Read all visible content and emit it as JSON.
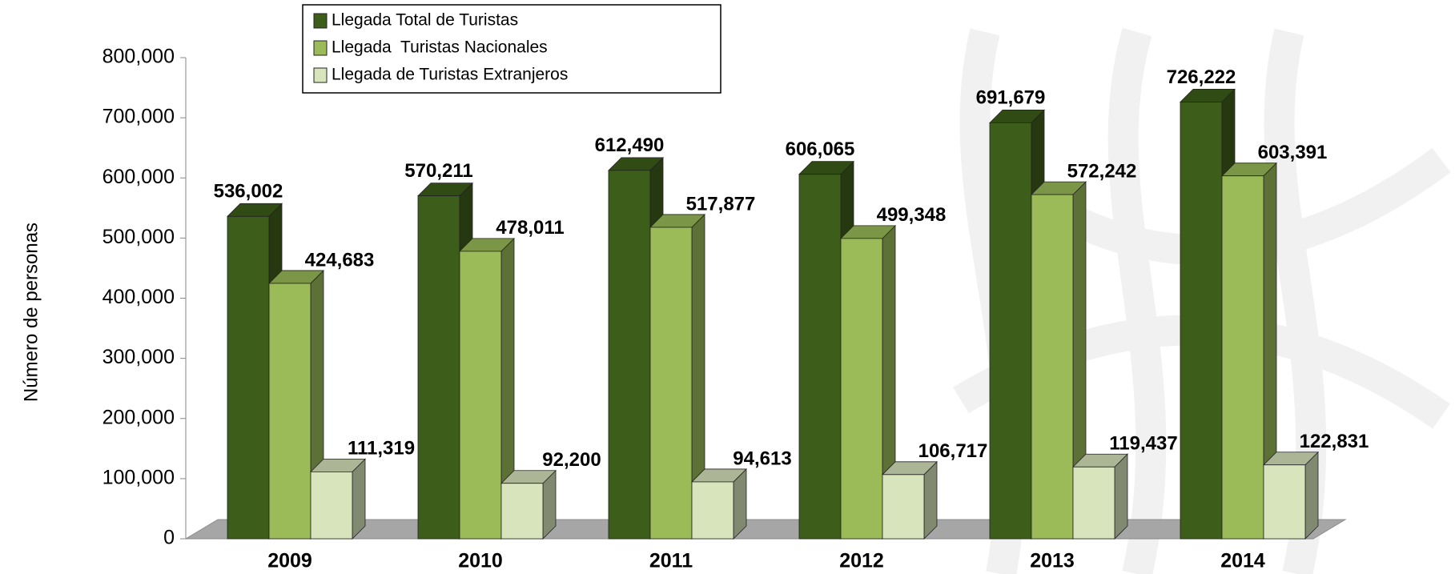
{
  "chart_data": {
    "type": "bar3d",
    "y_label": "Número de personas",
    "categories": [
      "2009",
      "2010",
      "2011",
      "2012",
      "2013",
      "2014"
    ],
    "series": [
      {
        "name": "Llegada Total de Turistas",
        "color": "#3d5e1a",
        "values": [
          536002,
          570211,
          612490,
          606065,
          691679,
          726222
        ],
        "value_labels": [
          "536,002",
          "570,211",
          "612,490",
          "606,065",
          "691,679",
          "726,222"
        ]
      },
      {
        "name": "Llegada  Turistas Nacionales",
        "color": "#9bbb59",
        "values": [
          424683,
          478011,
          517877,
          499348,
          572242,
          603391
        ],
        "value_labels": [
          "424,683",
          "478,011",
          "517,877",
          "499,348",
          "572,242",
          "603,391"
        ]
      },
      {
        "name": "Llegada de Turistas Extranjeros",
        "color": "#d7e4bc",
        "values": [
          111319,
          92200,
          94613,
          106717,
          119437,
          122831
        ],
        "value_labels": [
          "111,319",
          "92,200",
          "94,613",
          "106,717",
          "119,437",
          "122,831"
        ]
      }
    ],
    "ylim": [
      0,
      800000
    ],
    "yticks": [
      0,
      {
        "value": 100000,
        "label": "100,000"
      },
      {
        "value": 200000,
        "label": "200,000"
      },
      {
        "value": 300000,
        "label": "300,000"
      },
      {
        "value": 400000,
        "label": "400,000"
      },
      {
        "value": 500000,
        "label": "500,000"
      },
      {
        "value": 600000,
        "label": "600,000"
      },
      {
        "value": 700000,
        "label": "700,000"
      },
      {
        "value": 800000,
        "label": "800,000"
      }
    ],
    "legend": "top"
  }
}
